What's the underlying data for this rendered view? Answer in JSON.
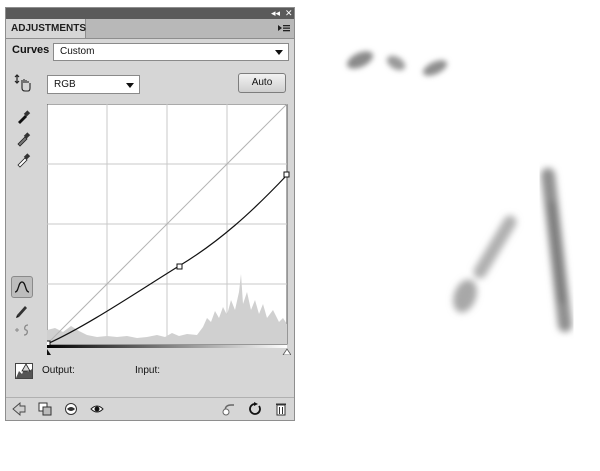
{
  "panel": {
    "tab_label": "ADJUSTMENTS",
    "title_controls": {
      "collapse": "◂◂",
      "close": "✕"
    },
    "preset_label": "Curves",
    "preset_value": "Custom",
    "channel_value": "RGB",
    "auto_label": "Auto",
    "output_label": "Output:",
    "input_label": "Input:"
  },
  "curve": {
    "points": [
      [
        0,
        0
      ],
      [
        55,
        32
      ],
      [
        100,
        72
      ]
    ],
    "histogram_note": "grey histogram behind curve"
  },
  "colors": {
    "panel_bg": "#d6d6d6",
    "titlebar": "#5a5a5a",
    "grid": "#c8c8c8",
    "curve": "#111111"
  }
}
